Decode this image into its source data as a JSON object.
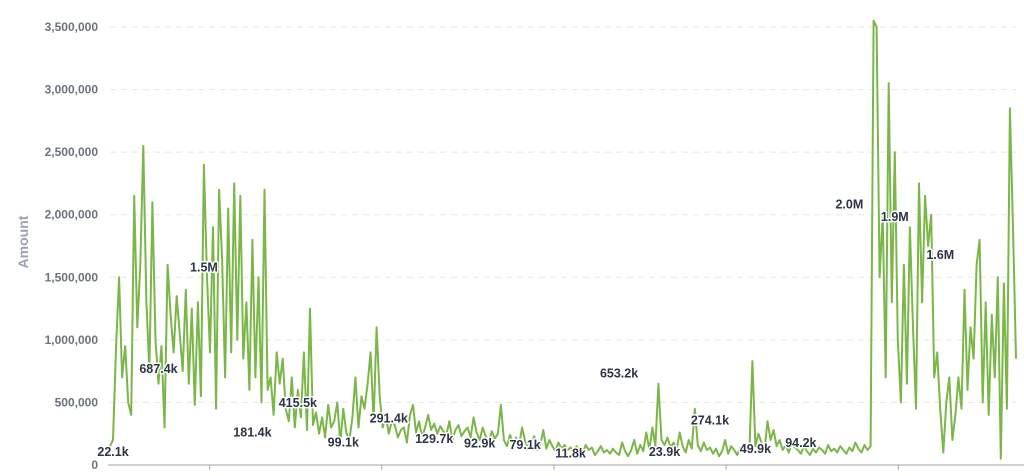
{
  "chart_data": {
    "type": "line",
    "ylabel": "Amount",
    "ylim": [
      0,
      3500000
    ],
    "yticks": [
      0,
      500000,
      1000000,
      1500000,
      2000000,
      2500000,
      3000000,
      3500000
    ],
    "ytick_labels": [
      "0",
      "500,000",
      "1,000,000",
      "1,500,000",
      "2,000,000",
      "2,500,000",
      "3,000,000",
      "3,500,000"
    ],
    "grid": true,
    "line_color": "#7ab648",
    "x_count": 300,
    "series": [
      {
        "values": [
          150000,
          200000,
          950000,
          1500000,
          700000,
          950000,
          500000,
          400000,
          2150000,
          1100000,
          1600000,
          2550000,
          1300000,
          750000,
          2100000,
          1000000,
          650000,
          950000,
          300000,
          1600000,
          1200000,
          900000,
          1350000,
          1050000,
          750000,
          1400000,
          650000,
          1250000,
          480000,
          1300000,
          550000,
          2400000,
          1500000,
          900000,
          1900000,
          450000,
          2200000,
          1650000,
          700000,
          2050000,
          900000,
          2250000,
          1000000,
          2150000,
          850000,
          1300000,
          600000,
          1800000,
          700000,
          1500000,
          500000,
          2200000,
          600000,
          700000,
          400000,
          900000,
          650000,
          850000,
          450000,
          350000,
          700000,
          300000,
          600000,
          380000,
          900000,
          280000,
          1250000,
          320000,
          420000,
          250000,
          380000,
          220000,
          480000,
          300000,
          350000,
          500000,
          180000,
          450000,
          260000,
          200000,
          380000,
          700000,
          300000,
          550000,
          450000,
          650000,
          900000,
          350000,
          1100000,
          550000,
          300000,
          400000,
          250000,
          350000,
          320000,
          220000,
          280000,
          300000,
          180000,
          400000,
          480000,
          260000,
          350000,
          220000,
          300000,
          400000,
          280000,
          330000,
          250000,
          310000,
          270000,
          240000,
          350000,
          200000,
          280000,
          320000,
          230000,
          270000,
          300000,
          220000,
          380000,
          260000,
          200000,
          300000,
          230000,
          180000,
          270000,
          210000,
          250000,
          480000,
          200000,
          150000,
          240000,
          180000,
          220000,
          160000,
          300000,
          190000,
          140000,
          170000,
          230000,
          120000,
          160000,
          280000,
          130000,
          200000,
          150000,
          110000,
          180000,
          130000,
          160000,
          120000,
          140000,
          100000,
          150000,
          120000,
          90000,
          160000,
          120000,
          140000,
          80000,
          110000,
          150000,
          100000,
          120000,
          90000,
          130000,
          100000,
          80000,
          180000,
          110000,
          70000,
          120000,
          200000,
          90000,
          160000,
          110000,
          260000,
          120000,
          300000,
          150000,
          650000,
          200000,
          160000,
          220000,
          140000,
          180000,
          120000,
          260000,
          150000,
          100000,
          200000,
          130000,
          450000,
          160000,
          110000,
          180000,
          120000,
          140000,
          90000,
          130000,
          70000,
          110000,
          200000,
          90000,
          150000,
          120000,
          80000,
          140000,
          100000,
          170000,
          120000,
          830000,
          150000,
          250000,
          180000,
          120000,
          350000,
          200000,
          280000,
          150000,
          200000,
          120000,
          160000,
          100000,
          180000,
          140000,
          120000,
          90000,
          150000,
          110000,
          80000,
          130000,
          100000,
          140000,
          120000,
          90000,
          160000,
          110000,
          130000,
          100000,
          150000,
          120000,
          90000,
          140000,
          110000,
          180000,
          130000,
          100000,
          160000,
          120000,
          150000,
          3550000,
          3500000,
          1500000,
          2000000,
          700000,
          3050000,
          1300000,
          2500000,
          1000000,
          500000,
          1600000,
          650000,
          1900000,
          1100000,
          450000,
          2250000,
          1300000,
          2150000,
          1750000,
          2000000,
          700000,
          900000,
          450000,
          100000,
          500000,
          700000,
          200000,
          400000,
          700000,
          450000,
          1400000,
          600000,
          1100000,
          850000,
          1600000,
          1800000,
          500000,
          1300000,
          400000,
          1200000,
          700000,
          1500000,
          50000,
          1450000,
          450000,
          2850000,
          1900000,
          850000
        ]
      }
    ],
    "data_labels": [
      {
        "index": 1,
        "value": 22100,
        "text": "22.1k"
      },
      {
        "index": 16,
        "value": 687400,
        "text": "687.4k"
      },
      {
        "index": 31,
        "value": 1500000,
        "text": "1.5M"
      },
      {
        "index": 47,
        "value": 181400,
        "text": "181.4k"
      },
      {
        "index": 62,
        "value": 415500,
        "text": "415.5k"
      },
      {
        "index": 77,
        "value": 99100,
        "text": "99.1k"
      },
      {
        "index": 92,
        "value": 291400,
        "text": "291.4k"
      },
      {
        "index": 107,
        "value": 129700,
        "text": "129.7k"
      },
      {
        "index": 122,
        "value": 92900,
        "text": "92.9k"
      },
      {
        "index": 137,
        "value": 79100,
        "text": "79.1k"
      },
      {
        "index": 152,
        "value": 11800,
        "text": "11.8k"
      },
      {
        "index": 168,
        "value": 653200,
        "text": "653.2k"
      },
      {
        "index": 183,
        "value": 23900,
        "text": "23.9k"
      },
      {
        "index": 198,
        "value": 274100,
        "text": "274.1k"
      },
      {
        "index": 213,
        "value": 49900,
        "text": "49.9k"
      },
      {
        "index": 228,
        "value": 94200,
        "text": "94.2k"
      },
      {
        "index": 244,
        "value": 2000000,
        "text": "2.0M"
      },
      {
        "index": 259,
        "value": 1900000,
        "text": "1.9M"
      },
      {
        "index": 274,
        "value": 1600000,
        "text": "1.6M"
      }
    ]
  }
}
